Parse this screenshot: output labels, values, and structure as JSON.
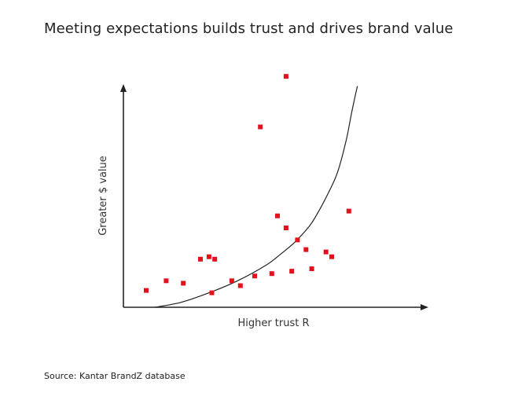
{
  "title": "Meeting expectations builds trust and drives brand value",
  "source": "Source: Kantar BrandZ database",
  "chart_data": {
    "type": "scatter",
    "xlabel": "Higher trust R",
    "ylabel": "Greater $ value",
    "xlim": [
      0,
      100
    ],
    "ylim": [
      0,
      100
    ],
    "grid": false,
    "ticks": false,
    "point_color": "#e3111b",
    "curve_color": "#222222",
    "points": [
      [
        8,
        7
      ],
      [
        15,
        11
      ],
      [
        21,
        10
      ],
      [
        27,
        20
      ],
      [
        30,
        21
      ],
      [
        32,
        20
      ],
      [
        31,
        6
      ],
      [
        38,
        11
      ],
      [
        41,
        9
      ],
      [
        46,
        13
      ],
      [
        52,
        14
      ],
      [
        54,
        38
      ],
      [
        57,
        33
      ],
      [
        59,
        15
      ],
      [
        61,
        28
      ],
      [
        64,
        24
      ],
      [
        66,
        16
      ],
      [
        71,
        23
      ],
      [
        73,
        21
      ],
      [
        79,
        40
      ],
      [
        48,
        75
      ],
      [
        57,
        96
      ]
    ],
    "trend_curve": [
      [
        11,
        0
      ],
      [
        20,
        2
      ],
      [
        30,
        6
      ],
      [
        40,
        11
      ],
      [
        50,
        17.5
      ],
      [
        55,
        22
      ],
      [
        60,
        27
      ],
      [
        65,
        33.5
      ],
      [
        68,
        39
      ],
      [
        72,
        48
      ],
      [
        75,
        56
      ],
      [
        78,
        69
      ],
      [
        80,
        81
      ],
      [
        82,
        92
      ]
    ]
  }
}
